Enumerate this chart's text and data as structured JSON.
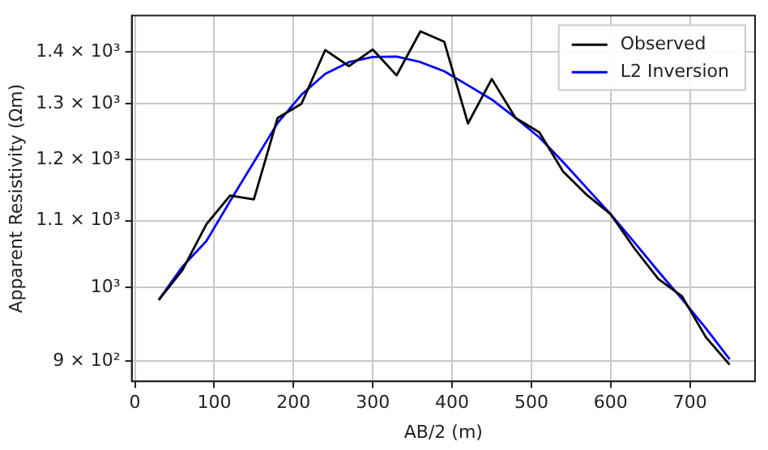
{
  "chart_data": {
    "type": "line",
    "xlabel": "AB/2 (m)",
    "ylabel": "Apparent Resistivity (Ωm)",
    "x": [
      30,
      60,
      90,
      120,
      150,
      180,
      210,
      240,
      270,
      300,
      330,
      360,
      390,
      420,
      450,
      480,
      510,
      540,
      570,
      600,
      630,
      660,
      690,
      720,
      750
    ],
    "series": [
      {
        "name": "Observed",
        "color": "#000000",
        "values": [
          982,
          1025,
          1094,
          1140,
          1134,
          1274,
          1300,
          1404,
          1372,
          1405,
          1354,
          1442,
          1421,
          1264,
          1347,
          1274,
          1248,
          1180,
          1141,
          1110,
          1057,
          1012,
          987,
          931,
          895
        ]
      },
      {
        "name": "L2 Inversion",
        "color": "#0000ff",
        "values": [
          982,
          1030,
          1068,
          1131,
          1196,
          1265,
          1317,
          1357,
          1380,
          1390,
          1391,
          1380,
          1362,
          1335,
          1308,
          1274,
          1239,
          1196,
          1152,
          1110,
          1066,
          1023,
          983,
          943,
          902
        ]
      }
    ],
    "xlim": [
      -4,
      782
    ],
    "xticks": [
      0,
      100,
      200,
      300,
      400,
      500,
      600,
      700
    ],
    "ylim": [
      874,
      1475
    ],
    "yticks": [
      {
        "value": 900,
        "label": "9 × 10²"
      },
      {
        "value": 1000,
        "label": "10³"
      },
      {
        "value": 1100,
        "label": "1.1 × 10³"
      },
      {
        "value": 1200,
        "label": "1.2 × 10³"
      },
      {
        "value": 1300,
        "label": "1.3 × 10³"
      },
      {
        "value": 1400,
        "label": "1.4 × 10³"
      }
    ],
    "log": "y",
    "grid": true,
    "legend": "top right",
    "marker": "none",
    "line_style": "solid"
  }
}
